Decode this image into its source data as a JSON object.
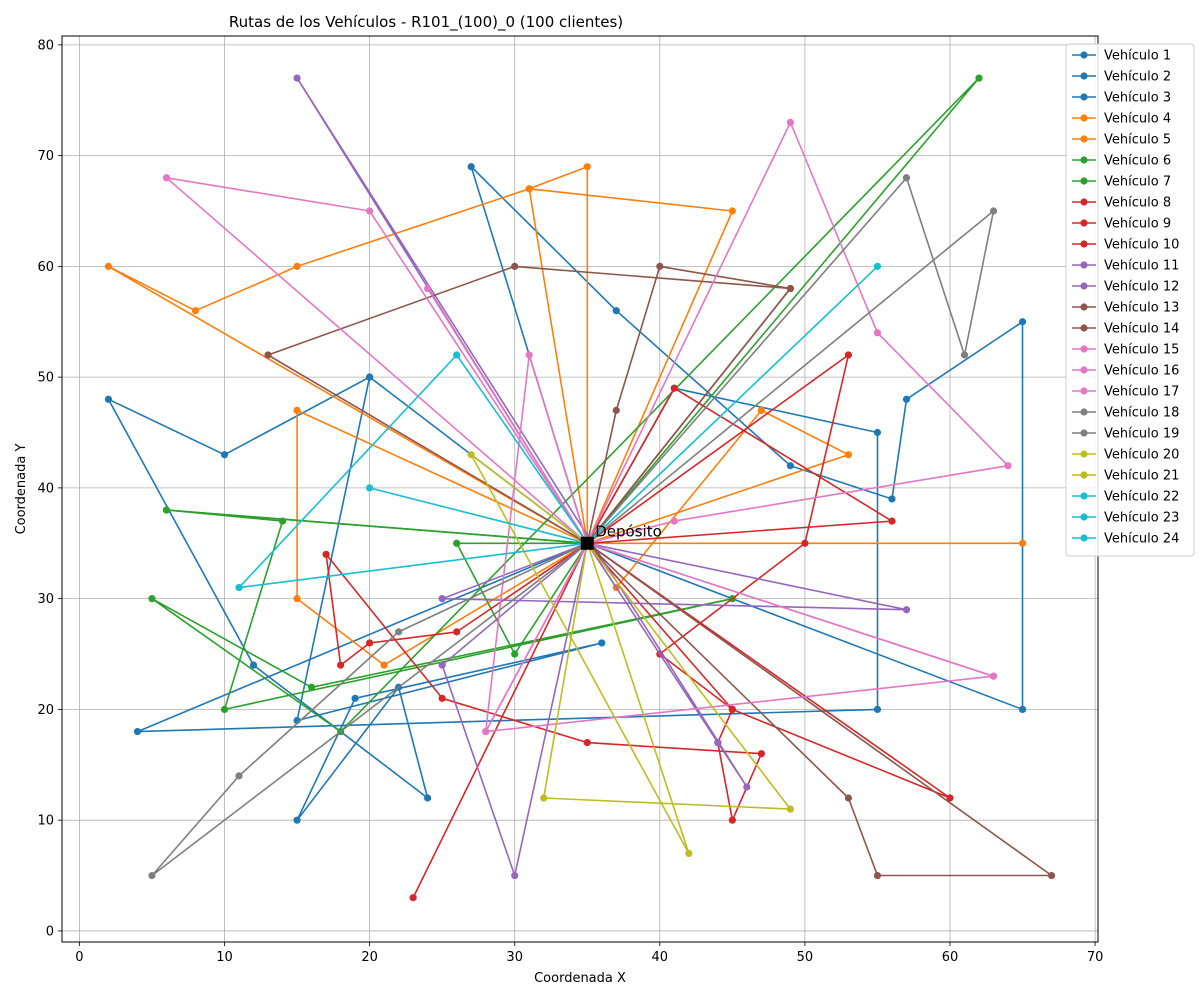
{
  "chart_data": {
    "type": "line",
    "title": "Rutas de los Vehículos - R101_(100)_0 (100 clientes)",
    "xlabel": "Coordenada X",
    "ylabel": "Coordenada Y",
    "xlim": [
      -1.2,
      70.2
    ],
    "ylim": [
      -1,
      80.8
    ],
    "x_ticks": [
      0,
      10,
      20,
      30,
      40,
      50,
      60,
      70
    ],
    "y_ticks": [
      0,
      10,
      20,
      30,
      40,
      50,
      60,
      70,
      80
    ],
    "grid": true,
    "legend_position": "outside top-right",
    "depot": {
      "label": "Depósito",
      "x": 35,
      "y": 35,
      "color": "#000000"
    },
    "series": [
      {
        "name": "Vehículo 1",
        "color": "#1f77b4",
        "points": [
          [
            35,
            35
          ],
          [
            41,
            49
          ],
          [
            55,
            45
          ],
          [
            55,
            20
          ],
          [
            4,
            18
          ],
          [
            35,
            35
          ]
        ]
      },
      {
        "name": "Vehículo 2",
        "color": "#1f77b4",
        "points": [
          [
            35,
            35
          ],
          [
            27,
            69
          ],
          [
            37,
            56
          ],
          [
            49,
            42
          ],
          [
            56,
            39
          ],
          [
            57,
            48
          ],
          [
            65,
            55
          ],
          [
            65,
            20
          ],
          [
            35,
            35
          ]
        ]
      },
      {
        "name": "Vehículo 3",
        "color": "#1f77b4",
        "points": [
          [
            35,
            35
          ],
          [
            20,
            50
          ],
          [
            10,
            43
          ],
          [
            2,
            48
          ],
          [
            12,
            24
          ],
          [
            24,
            12
          ],
          [
            22,
            22
          ],
          [
            15,
            10
          ],
          [
            19,
            21
          ],
          [
            36,
            26
          ],
          [
            15,
            19
          ],
          [
            20,
            50
          ],
          [
            35,
            35
          ]
        ]
      },
      {
        "name": "Vehículo 4",
        "color": "#ff7f0e",
        "points": [
          [
            35,
            35
          ],
          [
            35,
            69
          ],
          [
            31,
            67
          ],
          [
            45,
            65
          ],
          [
            35,
            35
          ]
        ]
      },
      {
        "name": "Vehículo 5",
        "color": "#ff7f0e",
        "points": [
          [
            35,
            35
          ],
          [
            15,
            47
          ],
          [
            15,
            30
          ],
          [
            21,
            24
          ],
          [
            35,
            35
          ],
          [
            2,
            60
          ],
          [
            8,
            56
          ],
          [
            15,
            60
          ],
          [
            31,
            67
          ],
          [
            35,
            35
          ],
          [
            53,
            43
          ],
          [
            47,
            47
          ],
          [
            37,
            31
          ],
          [
            35,
            35
          ],
          [
            65,
            35
          ],
          [
            35,
            35
          ]
        ]
      },
      {
        "name": "Vehículo 6",
        "color": "#2ca02c",
        "points": [
          [
            35,
            35
          ],
          [
            6,
            38
          ],
          [
            35,
            35
          ],
          [
            26,
            35
          ],
          [
            30,
            25
          ],
          [
            35,
            35
          ]
        ]
      },
      {
        "name": "Vehículo 7",
        "color": "#2ca02c",
        "points": [
          [
            35,
            35
          ],
          [
            62,
            77
          ],
          [
            18,
            18
          ],
          [
            5,
            30
          ],
          [
            16,
            22
          ],
          [
            45,
            30
          ],
          [
            10,
            20
          ],
          [
            14,
            37
          ],
          [
            6,
            38
          ],
          [
            35,
            35
          ]
        ]
      },
      {
        "name": "Vehículo 8",
        "color": "#d62728",
        "points": [
          [
            35,
            35
          ],
          [
            53,
            52
          ],
          [
            50,
            35
          ],
          [
            40,
            25
          ],
          [
            45,
            20
          ],
          [
            60,
            12
          ],
          [
            35,
            35
          ]
        ]
      },
      {
        "name": "Vehículo 9",
        "color": "#d62728",
        "points": [
          [
            35,
            35
          ],
          [
            26,
            27
          ],
          [
            20,
            26
          ],
          [
            18,
            24
          ],
          [
            17,
            34
          ],
          [
            25,
            21
          ],
          [
            35,
            17
          ],
          [
            47,
            16
          ],
          [
            45,
            10
          ],
          [
            44,
            17
          ],
          [
            45,
            20
          ],
          [
            35,
            35
          ]
        ]
      },
      {
        "name": "Vehículo 10",
        "color": "#d62728",
        "points": [
          [
            35,
            35
          ],
          [
            41,
            49
          ],
          [
            56,
            37
          ],
          [
            35,
            35
          ],
          [
            23,
            3
          ],
          [
            35,
            35
          ]
        ]
      },
      {
        "name": "Vehículo 11",
        "color": "#9467bd",
        "points": [
          [
            35,
            35
          ],
          [
            25,
            30
          ],
          [
            57,
            29
          ],
          [
            35,
            35
          ]
        ]
      },
      {
        "name": "Vehículo 12",
        "color": "#9467bd",
        "points": [
          [
            35,
            35
          ],
          [
            15,
            77
          ],
          [
            46,
            13
          ],
          [
            44,
            17
          ],
          [
            35,
            35
          ],
          [
            25,
            24
          ],
          [
            30,
            5
          ],
          [
            35,
            35
          ]
        ]
      },
      {
        "name": "Vehículo 13",
        "color": "#8c564b",
        "points": [
          [
            35,
            35
          ],
          [
            13,
            52
          ],
          [
            30,
            60
          ],
          [
            49,
            58
          ],
          [
            35,
            35
          ]
        ]
      },
      {
        "name": "Vehículo 14",
        "color": "#8c564b",
        "points": [
          [
            35,
            35
          ],
          [
            37,
            47
          ],
          [
            40,
            60
          ],
          [
            49,
            58
          ],
          [
            35,
            35
          ],
          [
            53,
            12
          ],
          [
            55,
            5
          ],
          [
            67,
            5
          ],
          [
            35,
            35
          ]
        ]
      },
      {
        "name": "Vehículo 15",
        "color": "#e377c2",
        "points": [
          [
            35,
            35
          ],
          [
            28,
            18
          ],
          [
            31,
            52
          ],
          [
            35,
            35
          ],
          [
            63,
            23
          ],
          [
            35,
            35
          ]
        ]
      },
      {
        "name": "Vehículo 16",
        "color": "#e377c2",
        "points": [
          [
            35,
            35
          ],
          [
            20,
            65
          ],
          [
            6,
            68
          ],
          [
            35,
            35
          ],
          [
            41,
            37
          ],
          [
            64,
            42
          ],
          [
            55,
            54
          ],
          [
            49,
            73
          ],
          [
            35,
            35
          ]
        ]
      },
      {
        "name": "Vehículo 17",
        "color": "#e377c2",
        "points": [
          [
            35,
            35
          ],
          [
            24,
            58
          ],
          [
            35,
            35
          ],
          [
            28,
            18
          ],
          [
            63,
            23
          ],
          [
            35,
            35
          ]
        ]
      },
      {
        "name": "Vehículo 18",
        "color": "#7f7f7f",
        "points": [
          [
            35,
            35
          ],
          [
            57,
            68
          ],
          [
            61,
            52
          ],
          [
            63,
            65
          ],
          [
            35,
            35
          ]
        ]
      },
      {
        "name": "Vehículo 19",
        "color": "#7f7f7f",
        "points": [
          [
            35,
            35
          ],
          [
            22,
            27
          ],
          [
            11,
            14
          ],
          [
            5,
            5
          ],
          [
            35,
            35
          ]
        ]
      },
      {
        "name": "Vehículo 20",
        "color": "#bcbd22",
        "points": [
          [
            35,
            35
          ],
          [
            27,
            43
          ],
          [
            42,
            7
          ],
          [
            35,
            35
          ]
        ]
      },
      {
        "name": "Vehículo 21",
        "color": "#bcbd22",
        "points": [
          [
            35,
            35
          ],
          [
            32,
            12
          ],
          [
            49,
            11
          ],
          [
            35,
            35
          ]
        ]
      },
      {
        "name": "Vehículo 22",
        "color": "#17becf",
        "points": [
          [
            35,
            35
          ],
          [
            26,
            52
          ],
          [
            11,
            31
          ],
          [
            35,
            35
          ]
        ]
      },
      {
        "name": "Vehículo 23",
        "color": "#17becf",
        "points": [
          [
            35,
            35
          ],
          [
            20,
            40
          ],
          [
            35,
            35
          ]
        ]
      },
      {
        "name": "Vehículo 24",
        "color": "#17becf",
        "points": [
          [
            35,
            35
          ],
          [
            55,
            60
          ],
          [
            35,
            35
          ]
        ]
      }
    ]
  }
}
